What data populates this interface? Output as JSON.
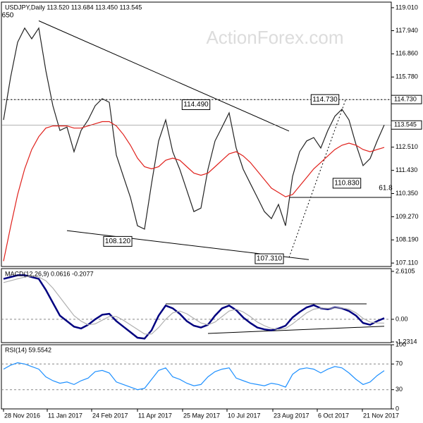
{
  "chart_data": [
    {
      "type": "line",
      "title": "USDJPY,Daily  113.520 113.684 113.450 113.545",
      "watermark": "ActionForex.com",
      "xlim": [
        -0.3,
        55
      ],
      "ylim": [
        106.95,
        119.27
      ],
      "yticks": [
        {
          "value": 119.01,
          "label": "119.010"
        },
        {
          "value": 117.94,
          "label": "117.940"
        },
        {
          "value": 116.86,
          "label": "116.860"
        },
        {
          "value": 115.78,
          "label": "115.780"
        },
        {
          "value": 112.51,
          "label": "112.510"
        },
        {
          "value": 111.43,
          "label": "111.430"
        },
        {
          "value": 110.35,
          "label": "110.350"
        },
        {
          "value": 109.27,
          "label": "109.270"
        },
        {
          "value": 108.19,
          "label": "108.190"
        },
        {
          "value": 107.11,
          "label": "107.110"
        }
      ],
      "price_labels": [
        {
          "value": 114.73,
          "label": "114.730"
        },
        {
          "value": 113.545,
          "label": "113.545"
        }
      ],
      "series": [
        {
          "name": "USDJPY",
          "color": "#222222",
          "values": [
            113.78,
            115.76,
            117.4,
            118.06,
            117.56,
            118.06,
            116.08,
            114.44,
            113.29,
            113.45,
            112.3,
            113.29,
            113.78,
            114.44,
            114.77,
            114.6,
            112.14,
            111.15,
            110.17,
            108.85,
            108.69,
            110.82,
            112.8,
            113.78,
            112.3,
            111.48,
            110.5,
            109.51,
            109.67,
            111.48,
            112.8,
            113.45,
            114.11,
            112.47,
            111.48,
            110.82,
            110.17,
            109.51,
            109.18,
            109.84,
            108.85,
            111.15,
            112.3,
            112.8,
            112.96,
            112.47,
            113.29,
            113.95,
            114.28,
            113.78,
            112.63,
            111.65,
            111.98,
            112.8,
            113.545
          ]
        },
        {
          "name": "MA",
          "color": "#e0201b",
          "values": [
            107.2,
            108.8,
            110.3,
            111.5,
            112.4,
            113.0,
            113.4,
            113.5,
            113.5,
            113.5,
            113.4,
            113.4,
            113.5,
            113.6,
            113.7,
            113.7,
            113.5,
            113.1,
            112.6,
            112.0,
            111.6,
            111.5,
            111.6,
            111.9,
            112.0,
            111.9,
            111.6,
            111.3,
            111.2,
            111.3,
            111.6,
            111.9,
            112.2,
            112.3,
            112.1,
            111.8,
            111.4,
            111.0,
            110.6,
            110.4,
            110.2,
            110.3,
            110.7,
            111.1,
            111.5,
            111.8,
            112.1,
            112.4,
            112.6,
            112.7,
            112.6,
            112.4,
            112.3,
            112.4,
            112.5
          ]
        }
      ],
      "trendlines": [
        {
          "color": "#000000",
          "dash": false,
          "points": [
            [
              5,
              118.4
            ],
            [
              40.5,
              113.26
            ]
          ]
        },
        {
          "color": "#000000",
          "dash": false,
          "points": [
            [
              9,
              108.62
            ],
            [
              43.3,
              107.27
            ]
          ]
        },
        {
          "color": "#000000",
          "dash": true,
          "points": [
            [
              40.5,
              107.37
            ],
            [
              48.5,
              114.7
            ]
          ]
        },
        {
          "color": "#000000",
          "dash": true,
          "points": [
            [
              0,
              114.73
            ],
            [
              55,
              114.73
            ]
          ]
        },
        {
          "color": "#000000",
          "dash": false,
          "points": [
            [
              40.5,
              110.17
            ],
            [
              55,
              110.17
            ]
          ]
        }
      ],
      "annotations": [
        {
          "text": "650",
          "x": 0.6,
          "y": 118.65
        },
        {
          "text": "114.490",
          "x": 27.3,
          "y": 114.49
        },
        {
          "text": "114.730",
          "x": 45.6,
          "y": 114.73
        },
        {
          "text": "110.830",
          "x": 48.7,
          "y": 110.83
        },
        {
          "text": "108.120",
          "x": 16.2,
          "y": 108.12
        },
        {
          "text": "107.310",
          "x": 37.7,
          "y": 107.31
        },
        {
          "text": "61.8",
          "x": 54.2,
          "y": 110.6
        }
      ]
    },
    {
      "type": "line",
      "title": "MACD(12,26,9) 0.0616 -0.2077",
      "xlim": [
        -0.3,
        55
      ],
      "ylim": [
        -1.27,
        2.76
      ],
      "yticks": [
        2.6105,
        {
          "value": 0,
          "label": "0.00"
        },
        -1.2314
      ],
      "zero_line": true,
      "series": [
        {
          "name": "MACD",
          "color": "#000080",
          "values": [
            2.2,
            2.3,
            2.4,
            2.4,
            2.3,
            2.2,
            1.6,
            0.9,
            0.2,
            -0.1,
            -0.4,
            -0.5,
            -0.3,
            0.0,
            0.25,
            0.3,
            -0.1,
            -0.4,
            -0.7,
            -1.0,
            -1.05,
            -0.6,
            0.2,
            0.75,
            0.6,
            0.3,
            -0.1,
            -0.35,
            -0.45,
            -0.3,
            0.2,
            0.6,
            0.75,
            0.5,
            0.1,
            -0.2,
            -0.45,
            -0.55,
            -0.6,
            -0.5,
            -0.35,
            0.1,
            0.4,
            0.65,
            0.77,
            0.6,
            0.55,
            0.65,
            0.6,
            0.45,
            0.2,
            -0.2,
            -0.3,
            -0.1,
            0.0616
          ]
        },
        {
          "name": "Signal",
          "color": "#b0b0b0",
          "values": [
            2.0,
            2.1,
            2.2,
            2.3,
            2.35,
            2.3,
            2.1,
            1.7,
            1.2,
            0.7,
            0.2,
            -0.1,
            -0.3,
            -0.25,
            -0.05,
            0.15,
            0.15,
            -0.05,
            -0.3,
            -0.55,
            -0.8,
            -0.8,
            -0.45,
            0.0,
            0.35,
            0.45,
            0.3,
            0.05,
            -0.2,
            -0.3,
            -0.15,
            0.15,
            0.45,
            0.55,
            0.4,
            0.15,
            -0.15,
            -0.35,
            -0.5,
            -0.55,
            -0.5,
            -0.25,
            0.05,
            0.35,
            0.55,
            0.62,
            0.6,
            0.62,
            0.62,
            0.55,
            0.35,
            0.05,
            -0.15,
            -0.2,
            -0.2077
          ]
        }
      ],
      "trendlines": [
        {
          "color": "#000000",
          "dash": false,
          "points": [
            [
              23,
              0.84
            ],
            [
              51.5,
              0.84
            ]
          ]
        },
        {
          "color": "#000000",
          "dash": false,
          "points": [
            [
              29,
              -0.77
            ],
            [
              54,
              -0.38
            ]
          ]
        }
      ]
    },
    {
      "type": "line",
      "title": "RSI(14) 59.5542",
      "xlim": [
        -0.3,
        55
      ],
      "ylim": [
        0,
        100
      ],
      "yticks": [
        100,
        70,
        30,
        0
      ],
      "levels": [
        70,
        30
      ],
      "series": [
        {
          "name": "RSI",
          "color": "#1e90ff",
          "values": [
            62,
            68,
            72,
            70,
            66,
            62,
            50,
            44,
            40,
            42,
            38,
            44,
            48,
            58,
            60,
            56,
            42,
            38,
            34,
            30,
            32,
            46,
            60,
            64,
            50,
            46,
            40,
            36,
            38,
            50,
            58,
            62,
            64,
            48,
            44,
            40,
            38,
            36,
            40,
            38,
            34,
            54,
            62,
            64,
            62,
            56,
            62,
            66,
            64,
            56,
            46,
            38,
            42,
            52,
            59.5542
          ]
        }
      ],
      "xticks": [
        {
          "value": 0,
          "label": "28 Nov 2016"
        },
        {
          "value": 6.2,
          "label": "11 Jan 2017"
        },
        {
          "value": 12.5,
          "label": "24 Feb 2017"
        },
        {
          "value": 19,
          "label": "11 Apr 2017"
        },
        {
          "value": 25.4,
          "label": "25 May 2017"
        },
        {
          "value": 31.7,
          "label": "10 Jul 2017"
        },
        {
          "value": 38.2,
          "label": "23 Aug 2017"
        },
        {
          "value": 44.5,
          "label": "6 Oct 2017"
        },
        {
          "value": 50.9,
          "label": "21 Nov 2017"
        }
      ]
    }
  ]
}
